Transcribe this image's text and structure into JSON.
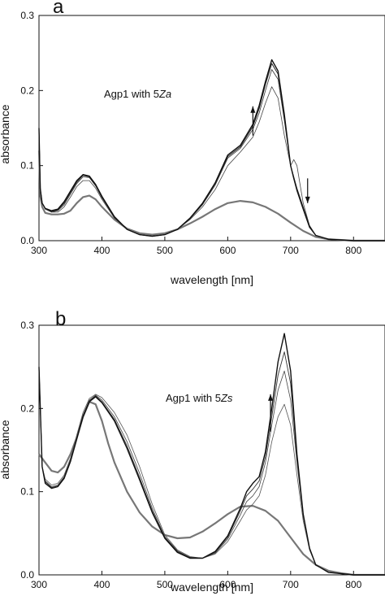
{
  "chart_data": [
    {
      "type": "line",
      "panel_label": "a",
      "annotation": {
        "prefix": "Agp1 with 5",
        "italic": "Za"
      },
      "xlabel": "wavelength [nm]",
      "ylabel": "absorbance",
      "xlim": [
        300,
        850
      ],
      "ylim": [
        0.0,
        0.3
      ],
      "xticks": [
        300,
        400,
        500,
        600,
        700,
        800
      ],
      "yticks": [
        0.0,
        0.1,
        0.2,
        0.3
      ],
      "ytick_labels": [
        "0.0",
        "0.1",
        "0.2",
        "0.3"
      ],
      "arrows": [
        {
          "x": 640,
          "direction": "up",
          "from": 0.14,
          "to": 0.179
        },
        {
          "x": 727,
          "direction": "down",
          "from": 0.083,
          "to": 0.05
        }
      ],
      "series": [
        {
          "color": "#777777",
          "width": 2.2,
          "x": [
            300,
            302,
            305,
            310,
            320,
            330,
            340,
            350,
            360,
            370,
            380,
            390,
            400,
            420,
            440,
            460,
            480,
            500,
            520,
            540,
            560,
            580,
            600,
            620,
            640,
            660,
            680,
            700,
            720,
            740,
            760,
            780,
            800,
            850
          ],
          "y": [
            0.12,
            0.06,
            0.045,
            0.037,
            0.035,
            0.035,
            0.036,
            0.04,
            0.05,
            0.058,
            0.06,
            0.055,
            0.045,
            0.028,
            0.016,
            0.01,
            0.008,
            0.01,
            0.015,
            0.023,
            0.032,
            0.042,
            0.05,
            0.053,
            0.051,
            0.045,
            0.036,
            0.024,
            0.013,
            0.005,
            0.002,
            0.001,
            0.0,
            0.0
          ]
        },
        {
          "color": "#444444",
          "width": 0.8,
          "x": [
            300,
            302,
            305,
            310,
            320,
            330,
            340,
            350,
            360,
            370,
            380,
            390,
            400,
            420,
            440,
            460,
            480,
            500,
            520,
            540,
            560,
            580,
            600,
            620,
            640,
            650,
            660,
            670,
            680,
            690,
            700,
            705,
            710,
            715,
            720,
            730,
            740,
            760,
            800,
            850
          ],
          "y": [
            0.15,
            0.07,
            0.05,
            0.042,
            0.038,
            0.038,
            0.045,
            0.058,
            0.072,
            0.08,
            0.08,
            0.07,
            0.055,
            0.03,
            0.015,
            0.008,
            0.006,
            0.008,
            0.015,
            0.028,
            0.045,
            0.068,
            0.1,
            0.118,
            0.138,
            0.158,
            0.183,
            0.205,
            0.19,
            0.14,
            0.1,
            0.108,
            0.1,
            0.075,
            0.05,
            0.02,
            0.007,
            0.002,
            0.0,
            0.0
          ]
        },
        {
          "color": "#333333",
          "width": 0.8,
          "x": [
            300,
            302,
            305,
            310,
            320,
            330,
            340,
            350,
            360,
            370,
            380,
            390,
            400,
            420,
            440,
            460,
            480,
            500,
            520,
            540,
            560,
            580,
            600,
            620,
            640,
            650,
            660,
            670,
            680,
            690,
            700,
            705,
            710,
            720,
            730,
            740,
            760,
            800,
            850
          ],
          "y": [
            0.15,
            0.07,
            0.05,
            0.042,
            0.038,
            0.04,
            0.048,
            0.062,
            0.076,
            0.085,
            0.084,
            0.073,
            0.057,
            0.031,
            0.015,
            0.008,
            0.006,
            0.008,
            0.015,
            0.029,
            0.048,
            0.074,
            0.11,
            0.123,
            0.148,
            0.17,
            0.2,
            0.228,
            0.215,
            0.16,
            0.1,
            0.085,
            0.07,
            0.045,
            0.02,
            0.007,
            0.002,
            0.0,
            0.0
          ]
        },
        {
          "color": "#222222",
          "width": 1.0,
          "x": [
            300,
            302,
            305,
            310,
            320,
            330,
            340,
            350,
            360,
            370,
            380,
            390,
            400,
            420,
            440,
            460,
            480,
            500,
            520,
            540,
            560,
            580,
            600,
            620,
            640,
            650,
            660,
            670,
            680,
            690,
            700,
            705,
            710,
            720,
            730,
            740,
            760,
            800,
            850
          ],
          "y": [
            0.15,
            0.07,
            0.05,
            0.043,
            0.039,
            0.041,
            0.05,
            0.064,
            0.078,
            0.087,
            0.085,
            0.074,
            0.058,
            0.031,
            0.015,
            0.008,
            0.006,
            0.008,
            0.015,
            0.03,
            0.049,
            0.076,
            0.112,
            0.125,
            0.152,
            0.176,
            0.208,
            0.236,
            0.222,
            0.165,
            0.1,
            0.084,
            0.068,
            0.043,
            0.019,
            0.007,
            0.002,
            0.0,
            0.0
          ]
        },
        {
          "color": "#111111",
          "width": 1.4,
          "x": [
            300,
            302,
            305,
            310,
            320,
            330,
            340,
            350,
            360,
            370,
            380,
            390,
            400,
            420,
            440,
            460,
            480,
            500,
            520,
            540,
            560,
            580,
            600,
            620,
            640,
            650,
            660,
            670,
            680,
            690,
            700,
            705,
            710,
            720,
            730,
            740,
            760,
            800,
            850
          ],
          "y": [
            0.15,
            0.07,
            0.05,
            0.043,
            0.04,
            0.042,
            0.052,
            0.066,
            0.08,
            0.088,
            0.086,
            0.075,
            0.059,
            0.032,
            0.015,
            0.008,
            0.006,
            0.008,
            0.015,
            0.03,
            0.05,
            0.077,
            0.114,
            0.127,
            0.155,
            0.18,
            0.212,
            0.241,
            0.226,
            0.168,
            0.1,
            0.083,
            0.067,
            0.042,
            0.018,
            0.007,
            0.002,
            0.0,
            0.0
          ]
        }
      ]
    },
    {
      "type": "line",
      "panel_label": "b",
      "annotation": {
        "prefix": "Agp1 with 5",
        "italic": "Zs"
      },
      "xlabel": "wavelength [nm]",
      "ylabel": "absorbance",
      "xlim": [
        300,
        850
      ],
      "ylim": [
        0.0,
        0.3
      ],
      "xticks": [
        300,
        400,
        500,
        600,
        700,
        800
      ],
      "yticks": [
        0.0,
        0.1,
        0.2,
        0.3
      ],
      "ytick_labels": [
        "0.0",
        "0.1",
        "0.2",
        "0.3"
      ],
      "arrows": [
        {
          "x": 668,
          "direction": "up",
          "from": 0.172,
          "to": 0.217
        }
      ],
      "series": [
        {
          "color": "#777777",
          "width": 2.2,
          "x": [
            300,
            310,
            320,
            330,
            340,
            350,
            360,
            370,
            380,
            390,
            400,
            410,
            420,
            440,
            460,
            480,
            500,
            520,
            540,
            560,
            580,
            600,
            620,
            640,
            660,
            680,
            700,
            720,
            740,
            760,
            780,
            800,
            850
          ],
          "y": [
            0.145,
            0.135,
            0.125,
            0.123,
            0.13,
            0.145,
            0.165,
            0.19,
            0.208,
            0.205,
            0.185,
            0.158,
            0.135,
            0.1,
            0.075,
            0.058,
            0.048,
            0.044,
            0.045,
            0.052,
            0.062,
            0.073,
            0.082,
            0.083,
            0.077,
            0.065,
            0.045,
            0.025,
            0.012,
            0.005,
            0.002,
            0.0,
            0.0
          ]
        },
        {
          "color": "#555555",
          "width": 0.8,
          "x": [
            300,
            305,
            310,
            320,
            330,
            340,
            350,
            360,
            370,
            380,
            390,
            400,
            420,
            440,
            460,
            480,
            500,
            520,
            540,
            560,
            580,
            600,
            620,
            630,
            640,
            650,
            660,
            670,
            680,
            690,
            700,
            710,
            720,
            730,
            740,
            760,
            800,
            850
          ],
          "y": [
            0.25,
            0.13,
            0.115,
            0.108,
            0.11,
            0.12,
            0.14,
            0.168,
            0.195,
            0.212,
            0.217,
            0.213,
            0.195,
            0.168,
            0.13,
            0.085,
            0.048,
            0.03,
            0.022,
            0.02,
            0.025,
            0.04,
            0.065,
            0.078,
            0.085,
            0.095,
            0.12,
            0.16,
            0.19,
            0.205,
            0.18,
            0.12,
            0.065,
            0.03,
            0.012,
            0.003,
            0.0,
            0.0
          ]
        },
        {
          "color": "#444444",
          "width": 0.8,
          "x": [
            300,
            305,
            310,
            320,
            330,
            340,
            350,
            360,
            370,
            380,
            390,
            400,
            420,
            440,
            460,
            480,
            500,
            520,
            540,
            560,
            580,
            600,
            620,
            630,
            640,
            650,
            660,
            670,
            680,
            690,
            700,
            710,
            720,
            730,
            740,
            760,
            800,
            850
          ],
          "y": [
            0.25,
            0.13,
            0.113,
            0.106,
            0.108,
            0.118,
            0.138,
            0.165,
            0.192,
            0.21,
            0.216,
            0.21,
            0.19,
            0.16,
            0.122,
            0.08,
            0.046,
            0.029,
            0.021,
            0.02,
            0.026,
            0.043,
            0.072,
            0.088,
            0.095,
            0.106,
            0.135,
            0.18,
            0.222,
            0.245,
            0.21,
            0.135,
            0.07,
            0.032,
            0.012,
            0.003,
            0.0,
            0.0
          ]
        },
        {
          "color": "#333333",
          "width": 0.9,
          "x": [
            300,
            305,
            310,
            320,
            330,
            340,
            350,
            360,
            370,
            380,
            390,
            400,
            420,
            440,
            460,
            480,
            500,
            520,
            540,
            560,
            580,
            600,
            620,
            630,
            640,
            650,
            660,
            670,
            680,
            690,
            700,
            710,
            720,
            730,
            740,
            760,
            800,
            850
          ],
          "y": [
            0.25,
            0.13,
            0.112,
            0.105,
            0.107,
            0.117,
            0.137,
            0.164,
            0.191,
            0.209,
            0.215,
            0.208,
            0.187,
            0.155,
            0.117,
            0.077,
            0.045,
            0.028,
            0.021,
            0.02,
            0.027,
            0.045,
            0.077,
            0.095,
            0.103,
            0.113,
            0.142,
            0.19,
            0.24,
            0.268,
            0.23,
            0.14,
            0.072,
            0.032,
            0.012,
            0.003,
            0.0,
            0.0
          ]
        },
        {
          "color": "#111111",
          "width": 1.4,
          "x": [
            300,
            305,
            310,
            320,
            330,
            340,
            350,
            360,
            370,
            380,
            390,
            400,
            420,
            440,
            460,
            480,
            500,
            520,
            540,
            560,
            580,
            600,
            620,
            630,
            640,
            650,
            660,
            670,
            680,
            690,
            700,
            710,
            720,
            730,
            740,
            760,
            800,
            850
          ],
          "y": [
            0.25,
            0.13,
            0.11,
            0.104,
            0.106,
            0.116,
            0.136,
            0.163,
            0.19,
            0.208,
            0.214,
            0.207,
            0.185,
            0.152,
            0.114,
            0.075,
            0.044,
            0.027,
            0.02,
            0.02,
            0.028,
            0.047,
            0.08,
            0.1,
            0.11,
            0.118,
            0.148,
            0.2,
            0.256,
            0.29,
            0.245,
            0.145,
            0.073,
            0.032,
            0.012,
            0.003,
            0.0,
            0.0
          ]
        }
      ]
    }
  ]
}
